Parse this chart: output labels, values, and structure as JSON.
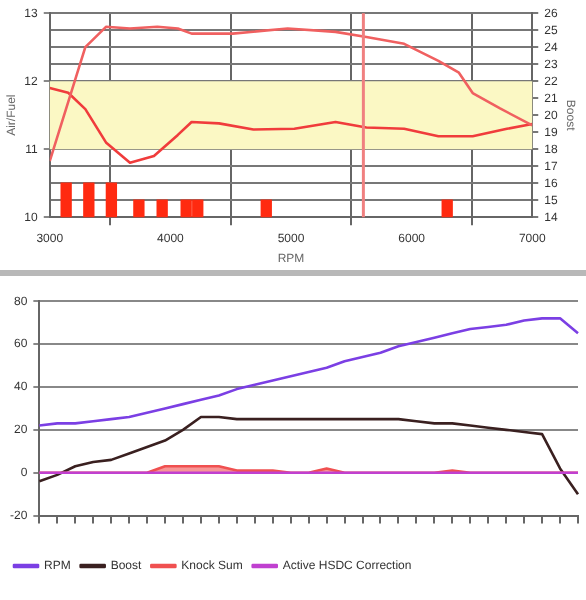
{
  "chart_data": [
    {
      "type": "line",
      "xlabel": "RPM",
      "ylabel": "Air/Fuel",
      "y2label": "Boost",
      "xlim": [
        3000,
        7000
      ],
      "xticks": [
        3000,
        4000,
        5000,
        6000,
        7000
      ],
      "ylim": [
        10,
        13
      ],
      "yticks": [
        10,
        11,
        12,
        13
      ],
      "y2lim": [
        14,
        26
      ],
      "y2ticks": [
        14,
        15,
        16,
        17,
        18,
        19,
        20,
        21,
        22,
        23,
        24,
        25,
        26
      ],
      "grid": true,
      "bands": [
        {
          "axis": "y",
          "from": 11,
          "to": 12,
          "color": "#fbf8c4"
        }
      ],
      "ref_lines": [
        {
          "axis": "x",
          "value": 5600,
          "color": "#f08080"
        }
      ],
      "series": [
        {
          "axis": "y",
          "color": "#f03c3c",
          "x": [
            3000,
            3153,
            3295,
            3466,
            3665,
            3864,
            4062,
            4176,
            4403,
            4688,
            5028,
            5369,
            5625,
            5938,
            6222,
            6506,
            6790,
            7000
          ],
          "values": [
            11.9,
            11.83,
            11.59,
            11.1,
            10.8,
            10.9,
            11.21,
            11.4,
            11.38,
            11.29,
            11.3,
            11.4,
            11.32,
            11.3,
            11.19,
            11.19,
            11.3,
            11.37
          ]
        },
        {
          "axis": "y2",
          "color": "#f06060",
          "x": [
            3000,
            3295,
            3466,
            3665,
            3892,
            4062,
            4176,
            4517,
            4972,
            5369,
            5625,
            5938,
            6222,
            6392,
            6506,
            6733,
            7000
          ],
          "values": [
            17.3,
            24,
            25.2,
            25.1,
            25.2,
            25.1,
            24.8,
            24.8,
            25.1,
            24.9,
            24.6,
            24.2,
            23.2,
            22.5,
            21.3,
            20.4,
            19.4
          ]
        },
        {
          "type": "bar",
          "axis": "y2",
          "color": "#ff2a10",
          "x": [
            3136,
            3324,
            3511,
            3739,
            3932,
            4131,
            4227,
            4795,
            6295
          ],
          "values": [
            16,
            16,
            16,
            15,
            15,
            15,
            15,
            15,
            15
          ]
        }
      ]
    },
    {
      "type": "line",
      "categories": [
        null,
        null,
        null,
        null,
        null,
        null,
        null,
        null,
        null,
        null,
        null,
        null,
        null,
        null,
        null,
        null,
        null,
        null,
        null,
        null,
        null,
        null,
        null,
        null,
        null,
        null,
        null,
        null,
        null,
        null,
        null
      ],
      "ylim": [
        -20,
        80
      ],
      "yticks": [
        -20,
        0,
        20,
        40,
        60,
        80
      ],
      "grid": "y",
      "legend": "bottom left",
      "series": [
        {
          "name": "RPM",
          "color": "#7b3fe4",
          "values": [
            22,
            23,
            23,
            24,
            25,
            26,
            28,
            30,
            32,
            34,
            36,
            39,
            41,
            43,
            45,
            47,
            49,
            52,
            54,
            56,
            59,
            61,
            63,
            65,
            67,
            68,
            69,
            71,
            72,
            72,
            65
          ]
        },
        {
          "name": "Boost",
          "color": "#3a2020",
          "values": [
            -4,
            -1,
            3,
            5,
            6,
            9,
            12,
            15,
            20,
            26,
            26,
            25,
            25,
            25,
            25,
            25,
            25,
            25,
            25,
            25,
            25,
            24,
            23,
            23,
            22,
            21,
            20,
            19,
            18,
            2,
            -10
          ]
        },
        {
          "name": "Knock Sum",
          "type": "area",
          "color": "#f05050",
          "values": [
            0,
            0,
            0,
            0,
            0,
            0,
            0,
            3,
            3,
            3,
            3,
            1,
            1,
            1,
            0,
            0,
            2,
            0,
            0,
            0,
            0,
            0,
            0,
            1,
            0,
            0,
            0,
            0,
            0,
            0,
            0
          ]
        },
        {
          "name": "Active HSDC Correction",
          "color": "#c040d0",
          "values": [
            0,
            0,
            0,
            0,
            0,
            0,
            0,
            0,
            0,
            0,
            0,
            0,
            0,
            0,
            0,
            0,
            0,
            0,
            0,
            0,
            0,
            0,
            0,
            0,
            0,
            0,
            0,
            0,
            0,
            0,
            0
          ]
        }
      ]
    }
  ]
}
